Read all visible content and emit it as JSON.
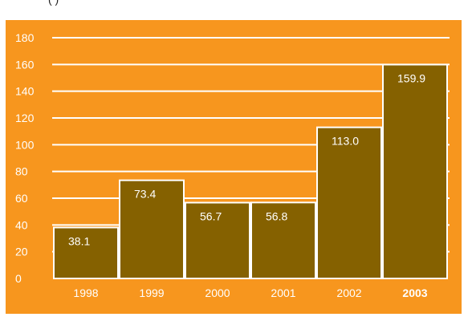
{
  "top_caption": "(                          )",
  "colors": {
    "background": "#F7961E",
    "bar_fill": "#856100",
    "bar_stroke": "#FFFFFF",
    "gridline": "#FFFFFF",
    "text_light": "#FFFFFF"
  },
  "chart_data": {
    "type": "bar",
    "title": "",
    "xlabel": "",
    "ylabel": "",
    "categories": [
      "1998",
      "1999",
      "2000",
      "2001",
      "2002",
      "2003"
    ],
    "values": [
      38.1,
      73.4,
      56.7,
      56.8,
      113.0,
      159.9
    ],
    "data_labels": [
      "38.1",
      "73.4",
      "56.7",
      "56.8",
      "113.0",
      "159.9"
    ],
    "highlighted_category": "2003",
    "ylim": [
      0,
      180
    ],
    "yticks": [
      0,
      20,
      40,
      60,
      80,
      100,
      120,
      140,
      160,
      180
    ],
    "grid": true,
    "legend": "none"
  }
}
